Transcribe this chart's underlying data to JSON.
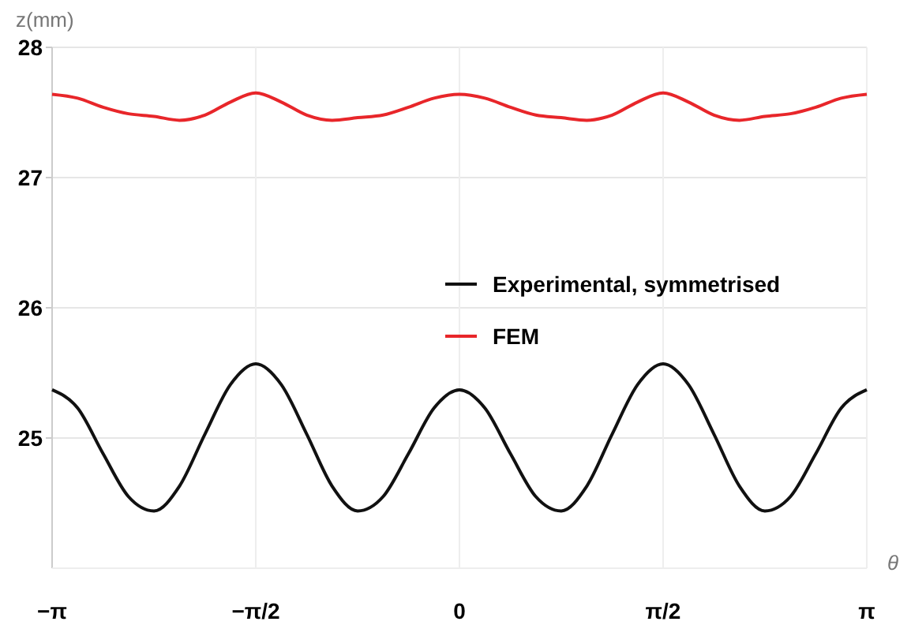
{
  "chart_data": {
    "type": "line",
    "xlabel": "θ",
    "ylabel": "z(mm)",
    "x": [
      -3.142,
      -2.945,
      -2.749,
      -2.553,
      -2.356,
      -2.16,
      -1.963,
      -1.767,
      -1.571,
      -1.374,
      -1.178,
      -0.982,
      -0.785,
      -0.589,
      -0.393,
      -0.196,
      0,
      0.196,
      0.393,
      0.589,
      0.785,
      0.982,
      1.178,
      1.374,
      1.571,
      1.767,
      1.963,
      2.16,
      2.356,
      2.553,
      2.749,
      2.945,
      3.142
    ],
    "series": [
      {
        "name": "Experimental, symmetrised",
        "color": "#111111",
        "values": [
          25.37,
          25.23,
          24.88,
          24.55,
          24.44,
          24.63,
          25.03,
          25.41,
          25.57,
          25.41,
          25.03,
          24.63,
          24.44,
          24.55,
          24.88,
          25.23,
          25.37,
          25.23,
          24.88,
          24.55,
          24.44,
          24.63,
          25.03,
          25.41,
          25.57,
          25.41,
          25.03,
          24.63,
          24.44,
          24.55,
          24.88,
          25.23,
          25.37
        ]
      },
      {
        "name": "FEM",
        "color": "#e8262a",
        "values": [
          27.64,
          27.61,
          27.54,
          27.49,
          27.47,
          27.44,
          27.48,
          27.58,
          27.65,
          27.58,
          27.48,
          27.44,
          27.46,
          27.48,
          27.54,
          27.61,
          27.64,
          27.61,
          27.54,
          27.48,
          27.46,
          27.44,
          27.48,
          27.58,
          27.65,
          27.58,
          27.48,
          27.44,
          27.47,
          27.49,
          27.54,
          27.61,
          27.64
        ]
      }
    ],
    "xlim": [
      -3.142,
      3.142
    ],
    "xticks": [
      {
        "value": -3.142,
        "label": "−π"
      },
      {
        "value": -1.571,
        "label": "−π/2"
      },
      0,
      {
        "value": 1.571,
        "label": "π/2"
      },
      {
        "value": 3.142,
        "label": "π"
      }
    ],
    "ylim": [
      24,
      28
    ],
    "yticks": [
      25,
      26,
      27,
      28
    ],
    "grid": true,
    "legend": "right",
    "marker": "none",
    "line_style": "solid"
  }
}
